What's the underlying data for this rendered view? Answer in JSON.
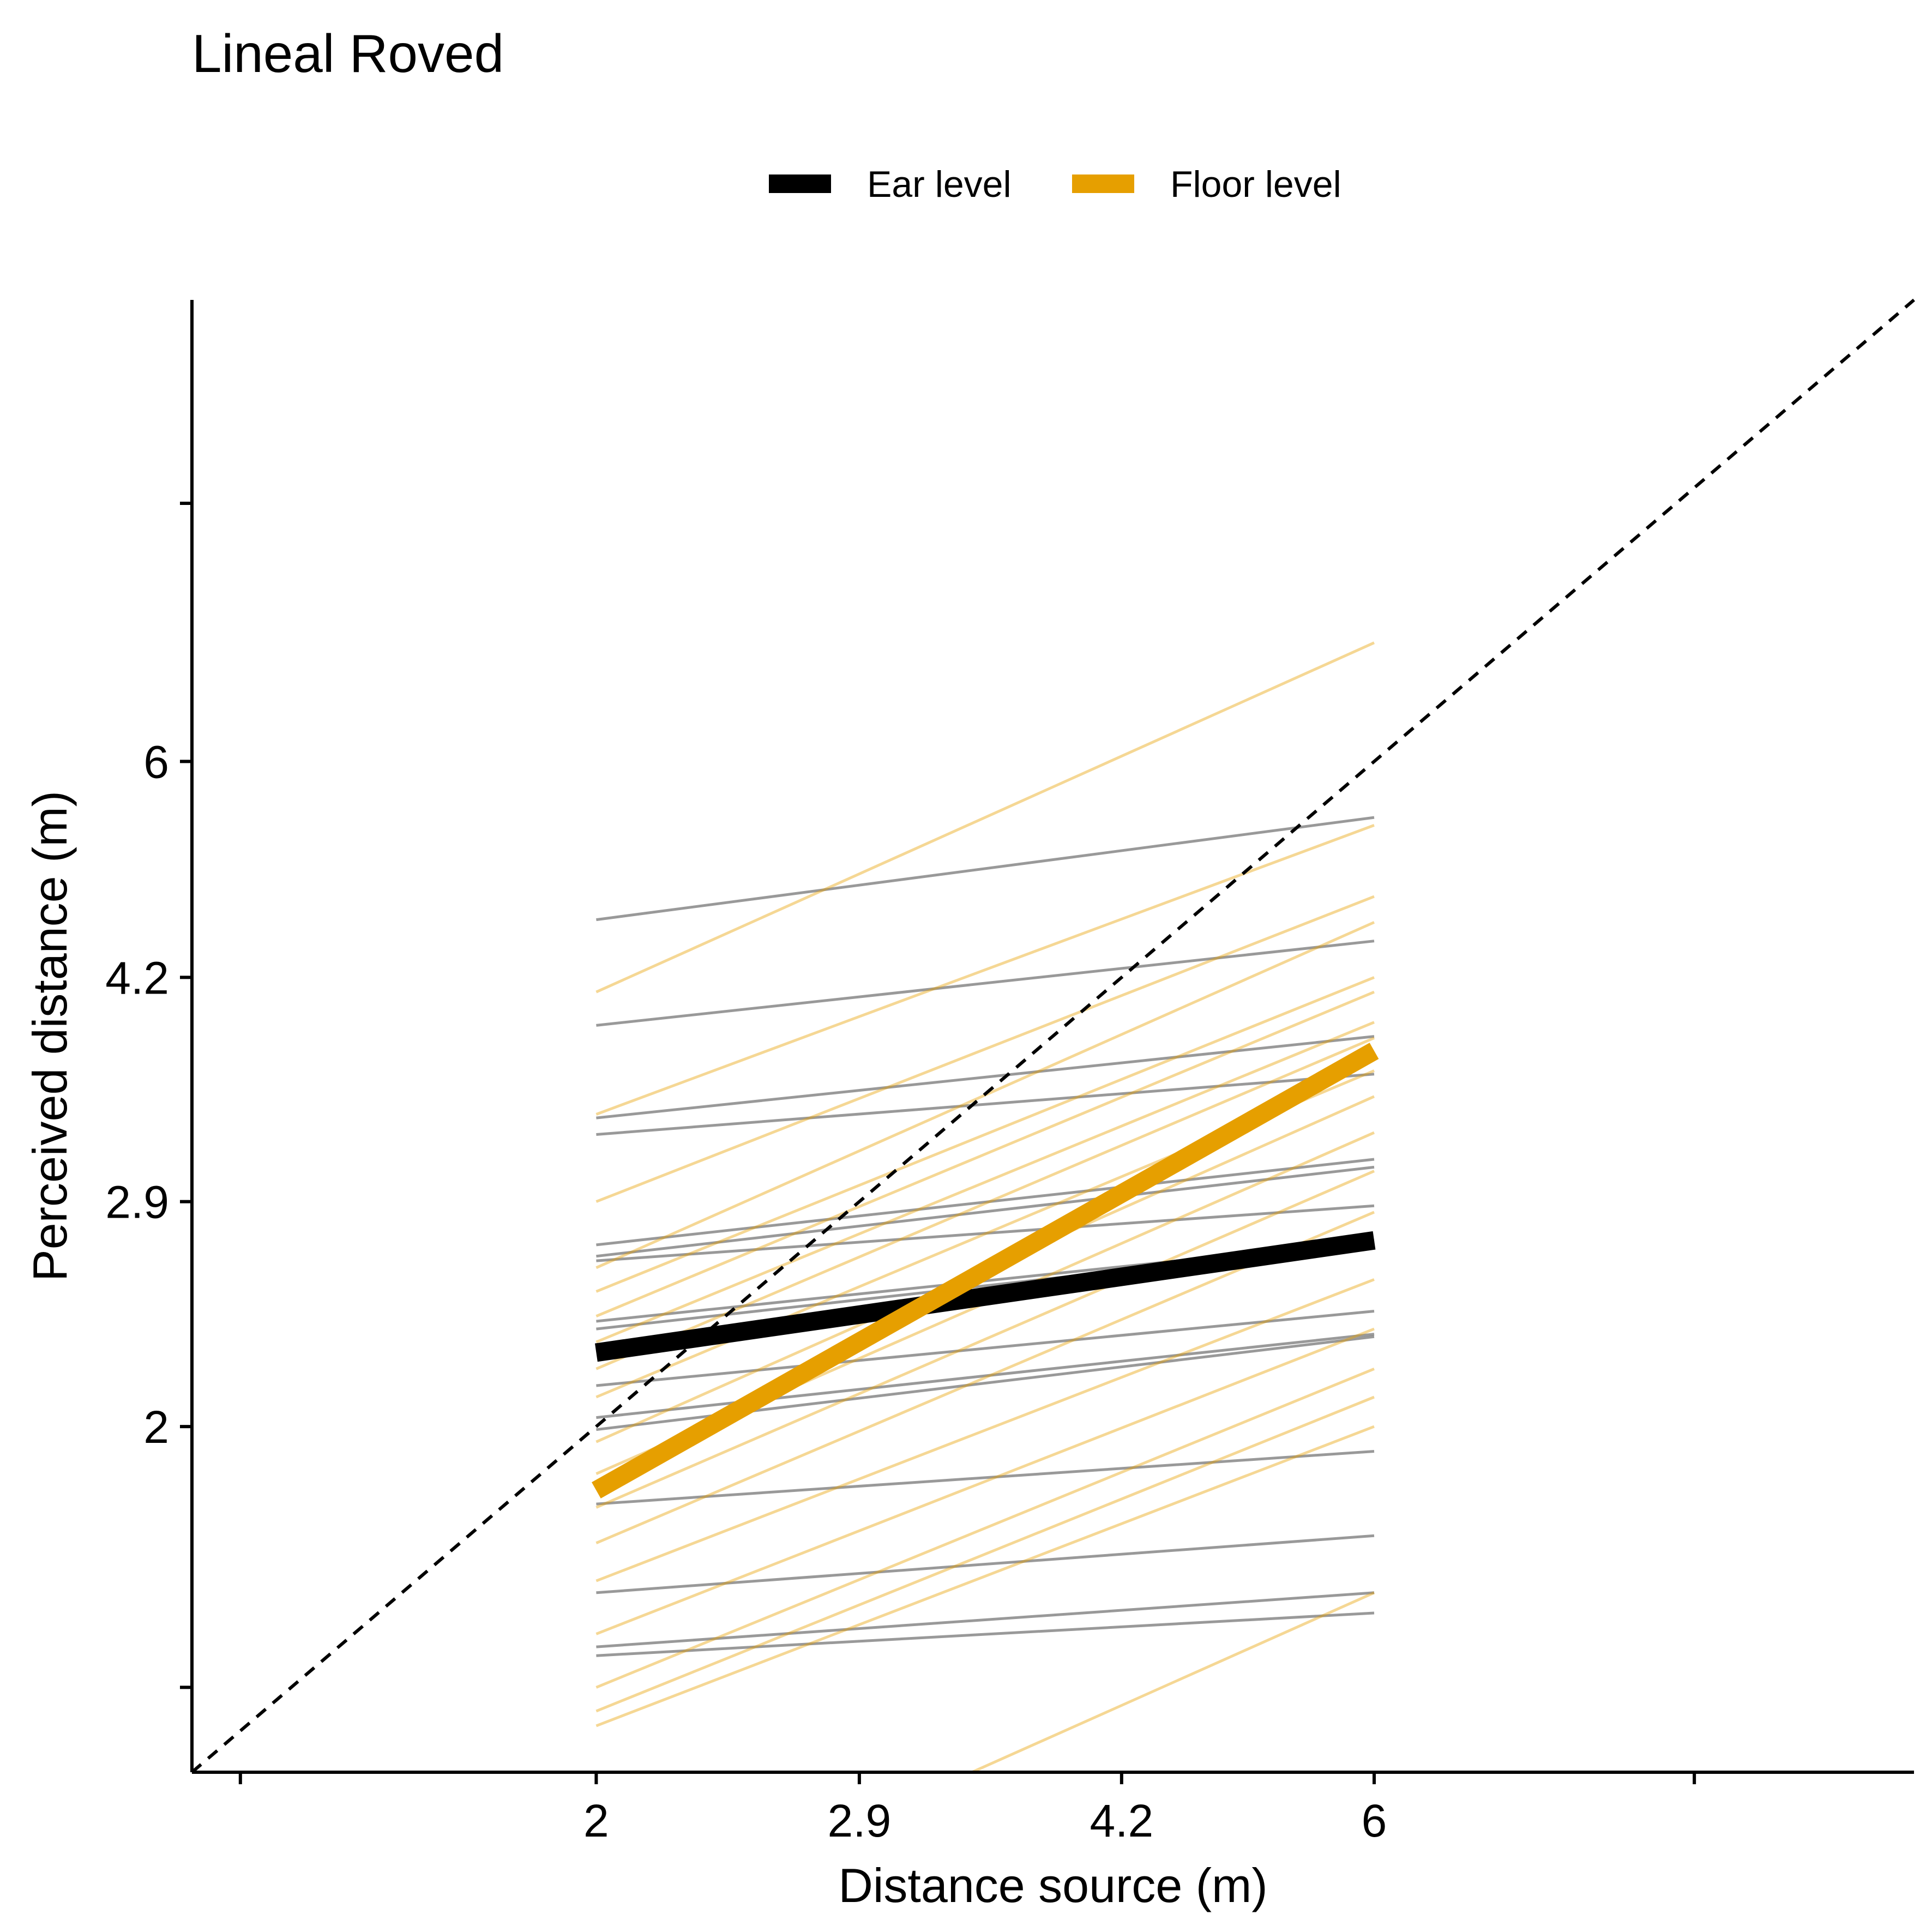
{
  "chart_data": {
    "type": "line",
    "title": "Lineal Roved",
    "xlabel": "Distance source (m)",
    "ylabel": "Perceived distance (m)",
    "x_scale": "log",
    "y_scale": "log",
    "xlim": [
      1.13,
      12.86
    ],
    "ylim": [
      1.13,
      12.86
    ],
    "x_ticks": [
      2,
      2.9,
      4.2,
      6
    ],
    "y_ticks": [
      2,
      2.9,
      4.2,
      6
    ],
    "x_tick_labels": [
      "2",
      "2.9",
      "4.2",
      "6"
    ],
    "y_tick_labels": [
      "2",
      "2.9",
      "4.2",
      "6"
    ],
    "x_minor_ticks": [
      1.21,
      9.43
    ],
    "y_minor_ticks": [
      1.3,
      9.19
    ],
    "grid": false,
    "legend": {
      "position": "top",
      "entries": [
        {
          "label": "Ear level",
          "color": "#000000"
        },
        {
          "label": "Floor level",
          "color": "#E69F00"
        }
      ]
    },
    "reference_line": {
      "type": "identity",
      "style": "dashed",
      "color": "#000000"
    },
    "colors": {
      "ear": "#000000",
      "floor": "#E69F00"
    },
    "series": [
      {
        "name": "Ear level",
        "group": "ear",
        "mean": true,
        "x": [
          2,
          6
        ],
        "y": [
          2.26,
          2.72
        ]
      },
      {
        "name": "Floor level",
        "group": "floor",
        "mean": true,
        "x": [
          2,
          6
        ],
        "y": [
          1.8,
          3.72
        ]
      }
    ],
    "individual_lines": [
      {
        "group": "ear",
        "x": [
          2,
          6
        ],
        "y": [
          4.62,
          5.47
        ]
      },
      {
        "group": "ear",
        "x": [
          2,
          6
        ],
        "y": [
          3.88,
          4.46
        ]
      },
      {
        "group": "ear",
        "x": [
          2,
          6
        ],
        "y": [
          3.33,
          3.81
        ]
      },
      {
        "group": "ear",
        "x": [
          2,
          6
        ],
        "y": [
          3.24,
          3.58
        ]
      },
      {
        "group": "ear",
        "x": [
          2,
          6
        ],
        "y": [
          2.7,
          3.11
        ]
      },
      {
        "group": "ear",
        "x": [
          2,
          6
        ],
        "y": [
          2.65,
          3.07
        ]
      },
      {
        "group": "ear",
        "x": [
          2,
          6
        ],
        "y": [
          2.63,
          2.88
        ]
      },
      {
        "group": "ear",
        "x": [
          2,
          6
        ],
        "y": [
          2.38,
          2.72
        ]
      },
      {
        "group": "ear",
        "x": [
          2,
          6
        ],
        "y": [
          2.35,
          2.71
        ]
      },
      {
        "group": "ear",
        "x": [
          2,
          6
        ],
        "y": [
          2.14,
          2.42
        ]
      },
      {
        "group": "ear",
        "x": [
          2,
          6
        ],
        "y": [
          2.03,
          2.33
        ]
      },
      {
        "group": "ear",
        "x": [
          2,
          6
        ],
        "y": [
          1.99,
          2.32
        ]
      },
      {
        "group": "ear",
        "x": [
          2,
          6
        ],
        "y": [
          1.76,
          1.92
        ]
      },
      {
        "group": "ear",
        "x": [
          2,
          6
        ],
        "y": [
          1.52,
          1.67
        ]
      },
      {
        "group": "ear",
        "x": [
          2,
          6
        ],
        "y": [
          1.39,
          1.52
        ]
      },
      {
        "group": "ear",
        "x": [
          2,
          6
        ],
        "y": [
          1.37,
          1.47
        ]
      },
      {
        "group": "ear",
        "x": [
          2,
          6
        ],
        "y": [
          1.06,
          1.07
        ]
      },
      {
        "group": "floor",
        "x": [
          2,
          6
        ],
        "y": [
          4.1,
          7.3
        ]
      },
      {
        "group": "floor",
        "x": [
          2,
          6
        ],
        "y": [
          3.35,
          5.4
        ]
      },
      {
        "group": "floor",
        "x": [
          2,
          6
        ],
        "y": [
          2.9,
          4.8
        ]
      },
      {
        "group": "floor",
        "x": [
          2,
          6
        ],
        "y": [
          2.6,
          4.6
        ]
      },
      {
        "group": "floor",
        "x": [
          2,
          6
        ],
        "y": [
          2.5,
          4.2
        ]
      },
      {
        "group": "floor",
        "x": [
          2,
          6
        ],
        "y": [
          2.4,
          4.1
        ]
      },
      {
        "group": "floor",
        "x": [
          2,
          6
        ],
        "y": [
          2.3,
          3.9
        ]
      },
      {
        "group": "floor",
        "x": [
          2,
          6
        ],
        "y": [
          2.2,
          3.8
        ]
      },
      {
        "group": "floor",
        "x": [
          2,
          6
        ],
        "y": [
          2.1,
          3.6
        ]
      },
      {
        "group": "floor",
        "x": [
          2,
          6
        ],
        "y": [
          1.95,
          3.45
        ]
      },
      {
        "group": "floor",
        "x": [
          2,
          6
        ],
        "y": [
          1.85,
          3.25
        ]
      },
      {
        "group": "floor",
        "x": [
          2,
          6
        ],
        "y": [
          1.75,
          3.05
        ]
      },
      {
        "group": "floor",
        "x": [
          2,
          6
        ],
        "y": [
          1.65,
          2.85
        ]
      },
      {
        "group": "floor",
        "x": [
          2,
          6
        ],
        "y": [
          1.55,
          2.55
        ]
      },
      {
        "group": "floor",
        "x": [
          2,
          6
        ],
        "y": [
          1.42,
          2.35
        ]
      },
      {
        "group": "floor",
        "x": [
          2,
          6
        ],
        "y": [
          1.3,
          2.2
        ]
      },
      {
        "group": "floor",
        "x": [
          2,
          6
        ],
        "y": [
          1.25,
          2.1
        ]
      },
      {
        "group": "floor",
        "x": [
          2,
          6
        ],
        "y": [
          1.22,
          2.0
        ]
      },
      {
        "group": "floor",
        "x": [
          2.9,
          6
        ],
        "y": [
          1.04,
          1.52
        ]
      }
    ]
  }
}
